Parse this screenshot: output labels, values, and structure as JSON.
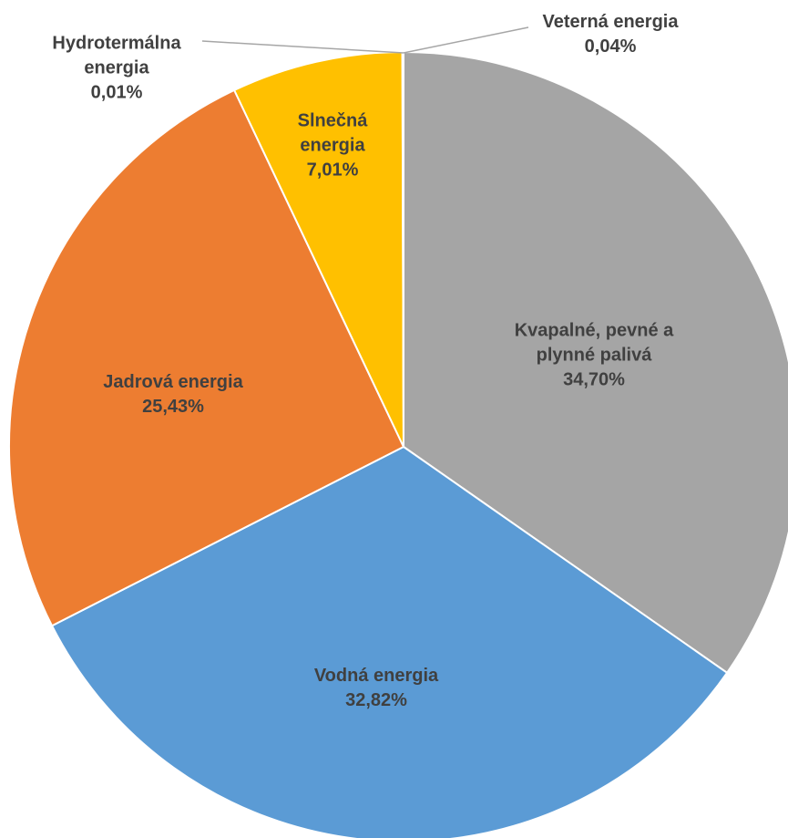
{
  "chart_data": {
    "type": "pie",
    "categories": [
      "Kvapalné, pevné a plynné palivá",
      "Vodná energia",
      "Jadrová energia",
      "Slnečná energia",
      "Hydrotermálna energia",
      "Veterná energia"
    ],
    "values": [
      34.7,
      32.82,
      25.43,
      7.01,
      0.01,
      0.04
    ],
    "value_labels": [
      "34,70%",
      "32,82%",
      "25,43%",
      "7,01%",
      "0,01%",
      "0,04%"
    ],
    "colors": [
      "#a5a5a5",
      "#5b9bd5",
      "#ed7d31",
      "#ffc000",
      "#4472c4",
      "#70ad47"
    ]
  }
}
